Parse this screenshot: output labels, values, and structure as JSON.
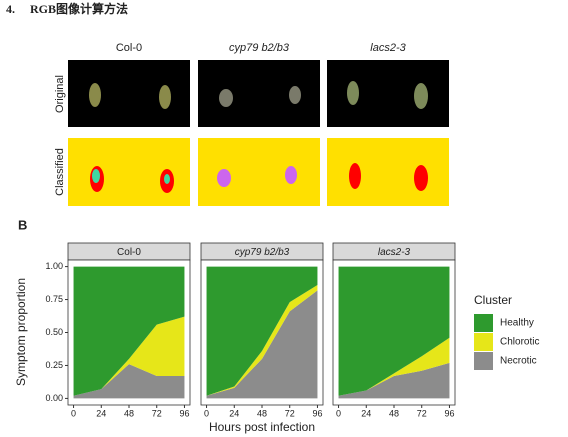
{
  "header": {
    "number": "4.",
    "title": "RGB图像计算方法"
  },
  "panel_a": {
    "columns": [
      "Col-0",
      "cyp79 b2/b3",
      "lacs2-3"
    ],
    "rows": [
      "Original",
      "Classified"
    ]
  },
  "panel_b": {
    "letter": "B",
    "y_label": "Symptom proportion",
    "x_label": "Hours post infection",
    "legend_title": "Cluster"
  },
  "chart_data": [
    {
      "type": "area",
      "title": "Col-0",
      "x": [
        0,
        24,
        48,
        72,
        96
      ],
      "series": [
        {
          "name": "Necrotic",
          "color": "#8c8c8c",
          "values": [
            0.02,
            0.07,
            0.26,
            0.17,
            0.17
          ]
        },
        {
          "name": "Chlorotic",
          "color": "#e6e619",
          "values": [
            0,
            0,
            0.04,
            0.39,
            0.45
          ]
        },
        {
          "name": "Healthy",
          "color": "#2e9a2e",
          "values": [
            0.98,
            0.93,
            0.7,
            0.44,
            0.38
          ]
        }
      ],
      "xlim": [
        -4.8,
        100.8
      ],
      "ylim": [
        -0.05,
        1.05
      ],
      "xticks": [
        0,
        24,
        48,
        72,
        96
      ],
      "yticks": [
        {
          "value": 0,
          "label": "0.00"
        },
        {
          "value": 0.25,
          "label": "0.25"
        },
        {
          "value": 0.5,
          "label": "0.50"
        },
        {
          "value": 0.75,
          "label": "0.75"
        },
        {
          "value": 1,
          "label": "1.00"
        }
      ]
    },
    {
      "type": "area",
      "title": "cyp79 b2/b3",
      "x": [
        0,
        24,
        48,
        72,
        96
      ],
      "series": [
        {
          "name": "Necrotic",
          "color": "#8c8c8c",
          "values": [
            0.02,
            0.08,
            0.3,
            0.66,
            0.82
          ]
        },
        {
          "name": "Chlorotic",
          "color": "#e6e619",
          "values": [
            0,
            0.01,
            0.06,
            0.07,
            0.04
          ]
        },
        {
          "name": "Healthy",
          "color": "#2e9a2e",
          "values": [
            0.98,
            0.91,
            0.64,
            0.27,
            0.14
          ]
        }
      ],
      "xlim": [
        -4.8,
        100.8
      ],
      "ylim": [
        -0.05,
        1.05
      ],
      "xticks": [
        0,
        24,
        48,
        72,
        96
      ]
    },
    {
      "type": "area",
      "title": "lacs2-3",
      "x": [
        0,
        24,
        48,
        72,
        96
      ],
      "series": [
        {
          "name": "Necrotic",
          "color": "#8c8c8c",
          "values": [
            0.02,
            0.06,
            0.17,
            0.21,
            0.27
          ]
        },
        {
          "name": "Chlorotic",
          "color": "#e6e619",
          "values": [
            0,
            0,
            0.02,
            0.11,
            0.19
          ]
        },
        {
          "name": "Healthy",
          "color": "#2e9a2e",
          "values": [
            0.98,
            0.94,
            0.81,
            0.68,
            0.54
          ]
        }
      ],
      "xlim": [
        -4.8,
        100.8
      ],
      "ylim": [
        -0.05,
        1.05
      ],
      "xticks": [
        0,
        24,
        48,
        72,
        96
      ]
    }
  ]
}
